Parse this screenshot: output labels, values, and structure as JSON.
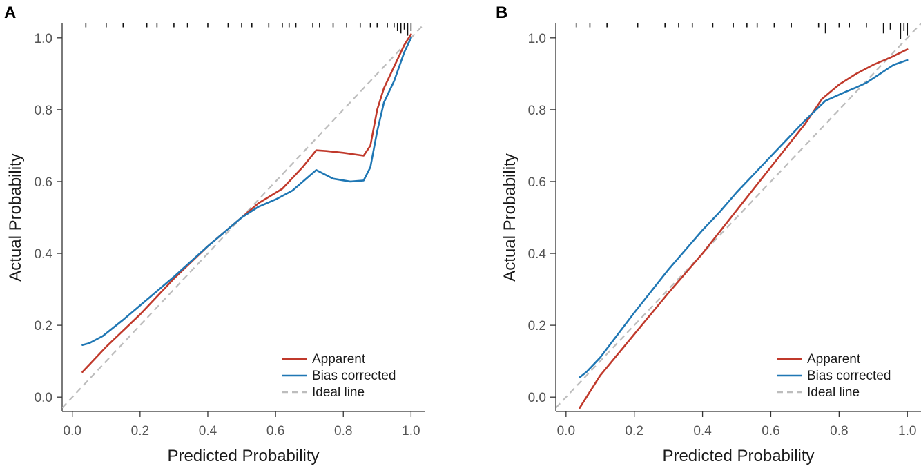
{
  "chart_data": [
    {
      "panel_label": "A",
      "type": "line",
      "xlabel": "Predicted Probability",
      "ylabel": "Actual Probability",
      "xlim": [
        -0.03,
        1.04
      ],
      "ylim": [
        -0.04,
        1.04
      ],
      "xticks": [
        0.0,
        0.2,
        0.4,
        0.6,
        0.8,
        1.0
      ],
      "yticks": [
        0.0,
        0.2,
        0.4,
        0.6,
        0.8,
        1.0
      ],
      "xtick_labels": [
        "0.0",
        "0.2",
        "0.4",
        "0.6",
        "0.8",
        "1.0"
      ],
      "ytick_labels": [
        "0.0",
        "0.2",
        "0.4",
        "0.6",
        "0.8",
        "1.0"
      ],
      "legend_position": "bottom-right",
      "series": [
        {
          "name": "Apparent",
          "color": "#c0392b",
          "style": "solid",
          "x": [
            0.03,
            0.1,
            0.2,
            0.3,
            0.4,
            0.5,
            0.55,
            0.62,
            0.68,
            0.72,
            0.75,
            0.8,
            0.86,
            0.88,
            0.9,
            0.92,
            0.95,
            0.98,
            1.0
          ],
          "y": [
            0.07,
            0.14,
            0.23,
            0.33,
            0.42,
            0.5,
            0.54,
            0.58,
            0.64,
            0.687,
            0.685,
            0.68,
            0.672,
            0.7,
            0.8,
            0.86,
            0.92,
            0.98,
            1.01
          ]
        },
        {
          "name": "Bias corrected",
          "color": "#1f77b4",
          "style": "solid",
          "x": [
            0.03,
            0.05,
            0.09,
            0.15,
            0.2,
            0.3,
            0.4,
            0.5,
            0.55,
            0.6,
            0.65,
            0.72,
            0.77,
            0.82,
            0.86,
            0.88,
            0.9,
            0.92,
            0.95,
            0.98,
            1.0
          ],
          "y": [
            0.145,
            0.15,
            0.17,
            0.215,
            0.255,
            0.335,
            0.42,
            0.5,
            0.53,
            0.55,
            0.575,
            0.632,
            0.608,
            0.6,
            0.603,
            0.64,
            0.74,
            0.82,
            0.88,
            0.96,
            1.0
          ]
        },
        {
          "name": "Ideal line",
          "color": "#bdbdbd",
          "style": "dashed",
          "x": [
            -0.03,
            1.04
          ],
          "y": [
            -0.03,
            1.04
          ]
        }
      ],
      "rug": [
        0.04,
        0.1,
        0.15,
        0.22,
        0.25,
        0.3,
        0.34,
        0.4,
        0.46,
        0.5,
        0.53,
        0.58,
        0.62,
        0.64,
        0.66,
        0.71,
        0.73,
        0.77,
        0.81,
        0.85,
        0.88,
        0.9,
        0.93,
        0.95,
        0.96,
        0.97,
        0.98,
        0.99,
        1.0
      ],
      "rug_heights": [
        0.5,
        0.5,
        0.5,
        0.5,
        0.5,
        0.5,
        0.5,
        0.5,
        0.5,
        0.5,
        0.5,
        0.5,
        0.5,
        0.5,
        0.5,
        0.5,
        0.5,
        0.5,
        0.5,
        0.5,
        0.5,
        0.5,
        0.5,
        0.5,
        1.0,
        1.3,
        0.8,
        1.6,
        1.0
      ]
    },
    {
      "panel_label": "B",
      "type": "line",
      "xlabel": "Predicted Probability",
      "ylabel": "Actual Probability",
      "xlim": [
        -0.03,
        1.04
      ],
      "ylim": [
        -0.04,
        1.04
      ],
      "xticks": [
        0.0,
        0.2,
        0.4,
        0.6,
        0.8,
        1.0
      ],
      "yticks": [
        0.0,
        0.2,
        0.4,
        0.6,
        0.8,
        1.0
      ],
      "xtick_labels": [
        "0.0",
        "0.2",
        "0.4",
        "0.6",
        "0.8",
        "1.0"
      ],
      "ytick_labels": [
        "0.0",
        "0.2",
        "0.4",
        "0.6",
        "0.8",
        "1.0"
      ],
      "legend_position": "bottom-right",
      "series": [
        {
          "name": "Apparent",
          "color": "#c0392b",
          "style": "solid",
          "x": [
            0.04,
            0.1,
            0.2,
            0.3,
            0.4,
            0.5,
            0.6,
            0.7,
            0.75,
            0.8,
            0.85,
            0.9,
            0.95,
            1.0
          ],
          "y": [
            -0.03,
            0.06,
            0.175,
            0.29,
            0.4,
            0.52,
            0.64,
            0.76,
            0.83,
            0.87,
            0.9,
            0.925,
            0.945,
            0.968
          ]
        },
        {
          "name": "Bias corrected",
          "color": "#1f77b4",
          "style": "solid",
          "x": [
            0.04,
            0.06,
            0.1,
            0.2,
            0.3,
            0.4,
            0.45,
            0.5,
            0.6,
            0.7,
            0.76,
            0.82,
            0.85,
            0.88,
            0.92,
            0.96,
            1.0
          ],
          "y": [
            0.055,
            0.07,
            0.11,
            0.235,
            0.355,
            0.465,
            0.515,
            0.57,
            0.67,
            0.77,
            0.825,
            0.85,
            0.862,
            0.875,
            0.9,
            0.925,
            0.938
          ]
        },
        {
          "name": "Ideal line",
          "color": "#bdbdbd",
          "style": "dashed",
          "x": [
            -0.03,
            1.04
          ],
          "y": [
            -0.03,
            1.04
          ]
        }
      ],
      "rug": [
        0.03,
        0.07,
        0.12,
        0.21,
        0.29,
        0.33,
        0.37,
        0.43,
        0.49,
        0.53,
        0.56,
        0.61,
        0.66,
        0.74,
        0.76,
        0.8,
        0.83,
        0.88,
        0.93,
        0.95,
        0.98,
        0.99,
        1.0
      ],
      "rug_heights": [
        0.5,
        0.5,
        0.5,
        0.5,
        0.5,
        0.5,
        0.5,
        0.5,
        0.5,
        0.5,
        0.5,
        0.5,
        0.5,
        0.5,
        1.3,
        0.5,
        0.5,
        0.5,
        1.3,
        0.8,
        2.0,
        1.0,
        1.6
      ]
    }
  ]
}
